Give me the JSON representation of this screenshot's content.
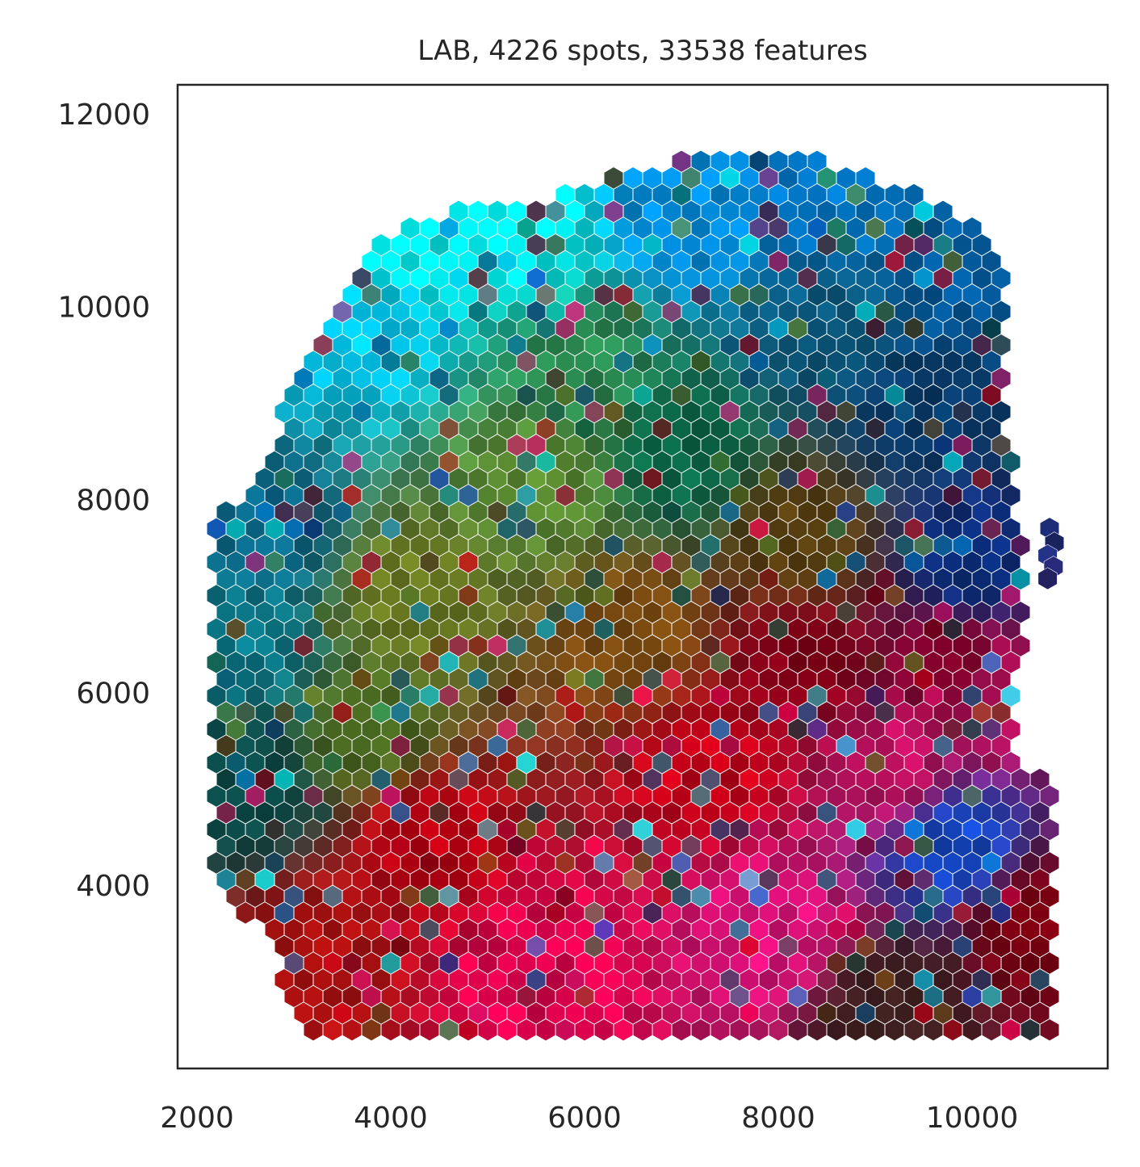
{
  "chart_data": {
    "type": "scatter",
    "title": "LAB, 4226 spots, 33538 features",
    "marker": "hexagon",
    "xlabel": "",
    "ylabel": "",
    "xlim": [
      1800,
      11400
    ],
    "ylim": [
      2100,
      12300
    ],
    "xticks": [
      2000,
      4000,
      6000,
      8000,
      10000
    ],
    "yticks": [
      4000,
      6000,
      8000,
      10000,
      12000
    ],
    "xtick_labels": [
      "2000",
      "4000",
      "6000",
      "8000",
      "10000"
    ],
    "ytick_labels": [
      "4000",
      "6000",
      "8000",
      "10000",
      "12000"
    ],
    "grid": false,
    "legend": false,
    "frame_color": "#262626",
    "spot_spacing": 200,
    "region_outline": [
      [
        2200,
        7900
      ],
      [
        2600,
        8100
      ],
      [
        3000,
        9200
      ],
      [
        3400,
        10100
      ],
      [
        3800,
        10700
      ],
      [
        4300,
        10900
      ],
      [
        4800,
        11100
      ],
      [
        5400,
        11000
      ],
      [
        6300,
        11400
      ],
      [
        7300,
        11600
      ],
      [
        8300,
        11600
      ],
      [
        9000,
        11300
      ],
      [
        9600,
        11100
      ],
      [
        10100,
        10900
      ],
      [
        10400,
        10400
      ],
      [
        10300,
        9000
      ],
      [
        10500,
        7800
      ],
      [
        10600,
        6700
      ],
      [
        10400,
        5900
      ],
      [
        10500,
        5300
      ],
      [
        10900,
        5100
      ],
      [
        10900,
        2500
      ],
      [
        3100,
        2500
      ],
      [
        2900,
        3000
      ],
      [
        2600,
        3600
      ],
      [
        2200,
        3900
      ],
      [
        2150,
        6200
      ]
    ],
    "isolated_spots": [
      [
        10800,
        7700
      ],
      [
        10850,
        7550
      ],
      [
        10780,
        7420
      ],
      [
        10840,
        7300
      ],
      [
        10780,
        7180
      ]
    ],
    "color_anchors": [
      {
        "x": 4200,
        "y": 10600,
        "color": "#00f0f0"
      },
      {
        "x": 5400,
        "y": 10700,
        "color": "#00f5f5"
      },
      {
        "x": 3700,
        "y": 9800,
        "color": "#00c8f0"
      },
      {
        "x": 7000,
        "y": 11000,
        "color": "#008ee0"
      },
      {
        "x": 8500,
        "y": 11100,
        "color": "#0078c8"
      },
      {
        "x": 9800,
        "y": 10200,
        "color": "#035a9c"
      },
      {
        "x": 9500,
        "y": 9000,
        "color": "#083a6a"
      },
      {
        "x": 10000,
        "y": 7300,
        "color": "#0a2f80"
      },
      {
        "x": 9800,
        "y": 6300,
        "color": "#7a0028"
      },
      {
        "x": 10200,
        "y": 6000,
        "color": "#c01060"
      },
      {
        "x": 9800,
        "y": 4400,
        "color": "#1448c8"
      },
      {
        "x": 10600,
        "y": 3600,
        "color": "#7a0010"
      },
      {
        "x": 9200,
        "y": 2700,
        "color": "#402020"
      },
      {
        "x": 8200,
        "y": 6300,
        "color": "#8a0018"
      },
      {
        "x": 7300,
        "y": 5200,
        "color": "#c80018"
      },
      {
        "x": 7900,
        "y": 3600,
        "color": "#e0107a"
      },
      {
        "x": 5500,
        "y": 3100,
        "color": "#e80050"
      },
      {
        "x": 4400,
        "y": 4500,
        "color": "#c00012"
      },
      {
        "x": 3200,
        "y": 3300,
        "color": "#b01010"
      },
      {
        "x": 2500,
        "y": 5000,
        "color": "#0a4a48"
      },
      {
        "x": 2500,
        "y": 6500,
        "color": "#0a7a8a"
      },
      {
        "x": 2700,
        "y": 7700,
        "color": "#0a6a8a"
      },
      {
        "x": 4200,
        "y": 7000,
        "color": "#6a7a20"
      },
      {
        "x": 5500,
        "y": 8200,
        "color": "#5a8a30"
      },
      {
        "x": 5900,
        "y": 9400,
        "color": "#2a8a50"
      },
      {
        "x": 7000,
        "y": 8500,
        "color": "#0a6a4a"
      },
      {
        "x": 6500,
        "y": 6600,
        "color": "#7a4a10"
      },
      {
        "x": 8200,
        "y": 7600,
        "color": "#5a4010"
      },
      {
        "x": 3800,
        "y": 5600,
        "color": "#4a6a20"
      },
      {
        "x": 8600,
        "y": 9800,
        "color": "#0a5a80"
      },
      {
        "x": 9200,
        "y": 5200,
        "color": "#c01060"
      }
    ]
  }
}
